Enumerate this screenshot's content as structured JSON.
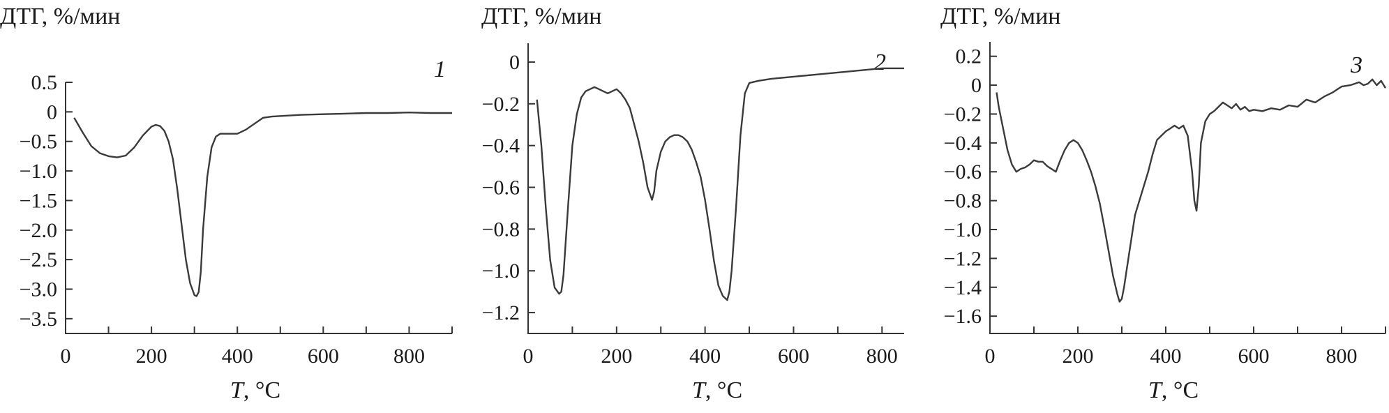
{
  "chart_data": [
    {
      "type": "line",
      "ylabel": "ДТГ, %/мин",
      "xlabel_symbol": "T",
      "xlabel_unit": ", °C",
      "curve_label": "1",
      "xlim": [
        0,
        900
      ],
      "ylim": [
        -3.75,
        0.5
      ],
      "xticks": [
        0,
        100,
        200,
        300,
        400,
        500,
        600,
        700,
        800,
        900
      ],
      "xtick_labels": [
        "0",
        "",
        "200",
        "",
        "400",
        "",
        "600",
        "",
        "800",
        ""
      ],
      "yticks": [
        0.5,
        0,
        -0.5,
        -1.0,
        -1.5,
        -2.0,
        -2.5,
        -3.0,
        -3.5
      ],
      "ytick_labels": [
        "0.5",
        "0",
        "−0.5",
        "−1.0",
        "−1.5",
        "−2.0",
        "−2.5",
        "−3.0",
        "−3.5"
      ],
      "series": [
        {
          "x": [
            20,
            40,
            60,
            80,
            100,
            120,
            140,
            160,
            180,
            200,
            210,
            220,
            230,
            240,
            250,
            260,
            270,
            280,
            290,
            300,
            305,
            310,
            315,
            320,
            330,
            340,
            350,
            360,
            380,
            400,
            420,
            440,
            460,
            480,
            500,
            550,
            600,
            650,
            700,
            750,
            800,
            850,
            900
          ],
          "y": [
            -0.1,
            -0.35,
            -0.58,
            -0.7,
            -0.75,
            -0.77,
            -0.74,
            -0.6,
            -0.4,
            -0.25,
            -0.22,
            -0.24,
            -0.32,
            -0.5,
            -0.8,
            -1.3,
            -1.9,
            -2.5,
            -2.9,
            -3.1,
            -3.12,
            -3.05,
            -2.7,
            -2.0,
            -1.1,
            -0.6,
            -0.42,
            -0.37,
            -0.37,
            -0.37,
            -0.3,
            -0.2,
            -0.1,
            -0.08,
            -0.07,
            -0.05,
            -0.04,
            -0.03,
            -0.02,
            -0.02,
            -0.01,
            -0.02,
            -0.02
          ]
        }
      ]
    },
    {
      "type": "line",
      "ylabel": "ДТГ, %/мин",
      "xlabel_symbol": "T",
      "xlabel_unit": ", °C",
      "curve_label": "2",
      "xlim": [
        0,
        850
      ],
      "ylim": [
        -1.3,
        0.09
      ],
      "xticks": [
        0,
        100,
        200,
        300,
        400,
        500,
        600,
        700,
        800
      ],
      "xtick_labels": [
        "0",
        "",
        "200",
        "",
        "400",
        "",
        "600",
        "",
        "800"
      ],
      "yticks": [
        0,
        -0.2,
        -0.4,
        -0.6,
        -0.8,
        -1.0,
        -1.2
      ],
      "ytick_labels": [
        "0",
        "−0.2",
        "−0.4",
        "−0.6",
        "−0.8",
        "−1.0",
        "−1.2"
      ],
      "series": [
        {
          "x": [
            20,
            30,
            40,
            50,
            60,
            70,
            75,
            80,
            90,
            100,
            110,
            120,
            130,
            140,
            150,
            160,
            170,
            180,
            190,
            200,
            210,
            220,
            230,
            240,
            250,
            260,
            270,
            280,
            285,
            290,
            300,
            310,
            320,
            330,
            340,
            350,
            360,
            370,
            380,
            390,
            400,
            410,
            420,
            430,
            440,
            450,
            455,
            460,
            470,
            480,
            490,
            500,
            520,
            550,
            600,
            650,
            700,
            750,
            800,
            820,
            850
          ],
          "y": [
            -0.18,
            -0.4,
            -0.7,
            -0.95,
            -1.08,
            -1.11,
            -1.1,
            -1.02,
            -0.7,
            -0.4,
            -0.25,
            -0.17,
            -0.14,
            -0.13,
            -0.12,
            -0.13,
            -0.14,
            -0.15,
            -0.14,
            -0.13,
            -0.15,
            -0.18,
            -0.22,
            -0.3,
            -0.38,
            -0.48,
            -0.6,
            -0.66,
            -0.62,
            -0.52,
            -0.43,
            -0.38,
            -0.36,
            -0.35,
            -0.35,
            -0.36,
            -0.38,
            -0.42,
            -0.48,
            -0.55,
            -0.66,
            -0.8,
            -0.95,
            -1.07,
            -1.12,
            -1.14,
            -1.1,
            -1.0,
            -0.7,
            -0.35,
            -0.15,
            -0.1,
            -0.09,
            -0.08,
            -0.07,
            -0.06,
            -0.05,
            -0.04,
            -0.03,
            -0.03,
            -0.03
          ]
        }
      ]
    },
    {
      "type": "line",
      "ylabel": "ДТГ, %/мин",
      "xlabel_symbol": "T",
      "xlabel_unit": ", °C",
      "curve_label": "3",
      "xlim": [
        0,
        900
      ],
      "ylim": [
        -1.72,
        0.3
      ],
      "xticks": [
        0,
        100,
        200,
        300,
        400,
        500,
        600,
        700,
        800,
        900
      ],
      "xtick_labels": [
        "0",
        "",
        "200",
        "",
        "400",
        "",
        "600",
        "",
        "800",
        ""
      ],
      "yticks": [
        0.2,
        0,
        -0.2,
        -0.4,
        -0.6,
        -0.8,
        -1.0,
        -1.2,
        -1.4,
        -1.6
      ],
      "ytick_labels": [
        "0.2",
        "0",
        "−0.2",
        "−0.4",
        "−0.6",
        "−0.8",
        "−1.0",
        "−1.2",
        "−1.4",
        "−1.6"
      ],
      "series": [
        {
          "x": [
            15,
            20,
            30,
            40,
            50,
            60,
            70,
            80,
            90,
            100,
            110,
            120,
            130,
            140,
            150,
            160,
            170,
            180,
            190,
            200,
            210,
            220,
            230,
            240,
            250,
            260,
            270,
            280,
            290,
            295,
            300,
            305,
            310,
            320,
            330,
            340,
            350,
            360,
            370,
            380,
            390,
            400,
            410,
            420,
            430,
            440,
            450,
            460,
            465,
            470,
            475,
            480,
            490,
            500,
            510,
            520,
            530,
            540,
            550,
            560,
            570,
            580,
            590,
            600,
            620,
            640,
            660,
            680,
            700,
            720,
            740,
            760,
            780,
            800,
            820,
            840,
            850,
            860,
            870,
            880,
            890,
            900
          ],
          "y": [
            -0.05,
            -0.15,
            -0.3,
            -0.45,
            -0.55,
            -0.6,
            -0.58,
            -0.57,
            -0.55,
            -0.52,
            -0.53,
            -0.53,
            -0.56,
            -0.58,
            -0.6,
            -0.52,
            -0.45,
            -0.4,
            -0.38,
            -0.4,
            -0.45,
            -0.52,
            -0.6,
            -0.7,
            -0.82,
            -0.98,
            -1.15,
            -1.32,
            -1.45,
            -1.5,
            -1.48,
            -1.4,
            -1.3,
            -1.1,
            -0.9,
            -0.8,
            -0.7,
            -0.6,
            -0.48,
            -0.38,
            -0.35,
            -0.32,
            -0.3,
            -0.28,
            -0.3,
            -0.28,
            -0.35,
            -0.6,
            -0.8,
            -0.87,
            -0.7,
            -0.4,
            -0.25,
            -0.2,
            -0.18,
            -0.15,
            -0.12,
            -0.14,
            -0.16,
            -0.13,
            -0.17,
            -0.15,
            -0.18,
            -0.17,
            -0.18,
            -0.16,
            -0.17,
            -0.14,
            -0.15,
            -0.1,
            -0.12,
            -0.08,
            -0.05,
            -0.01,
            0.0,
            0.02,
            0.0,
            0.01,
            0.04,
            0.0,
            0.03,
            -0.02
          ]
        }
      ]
    }
  ]
}
